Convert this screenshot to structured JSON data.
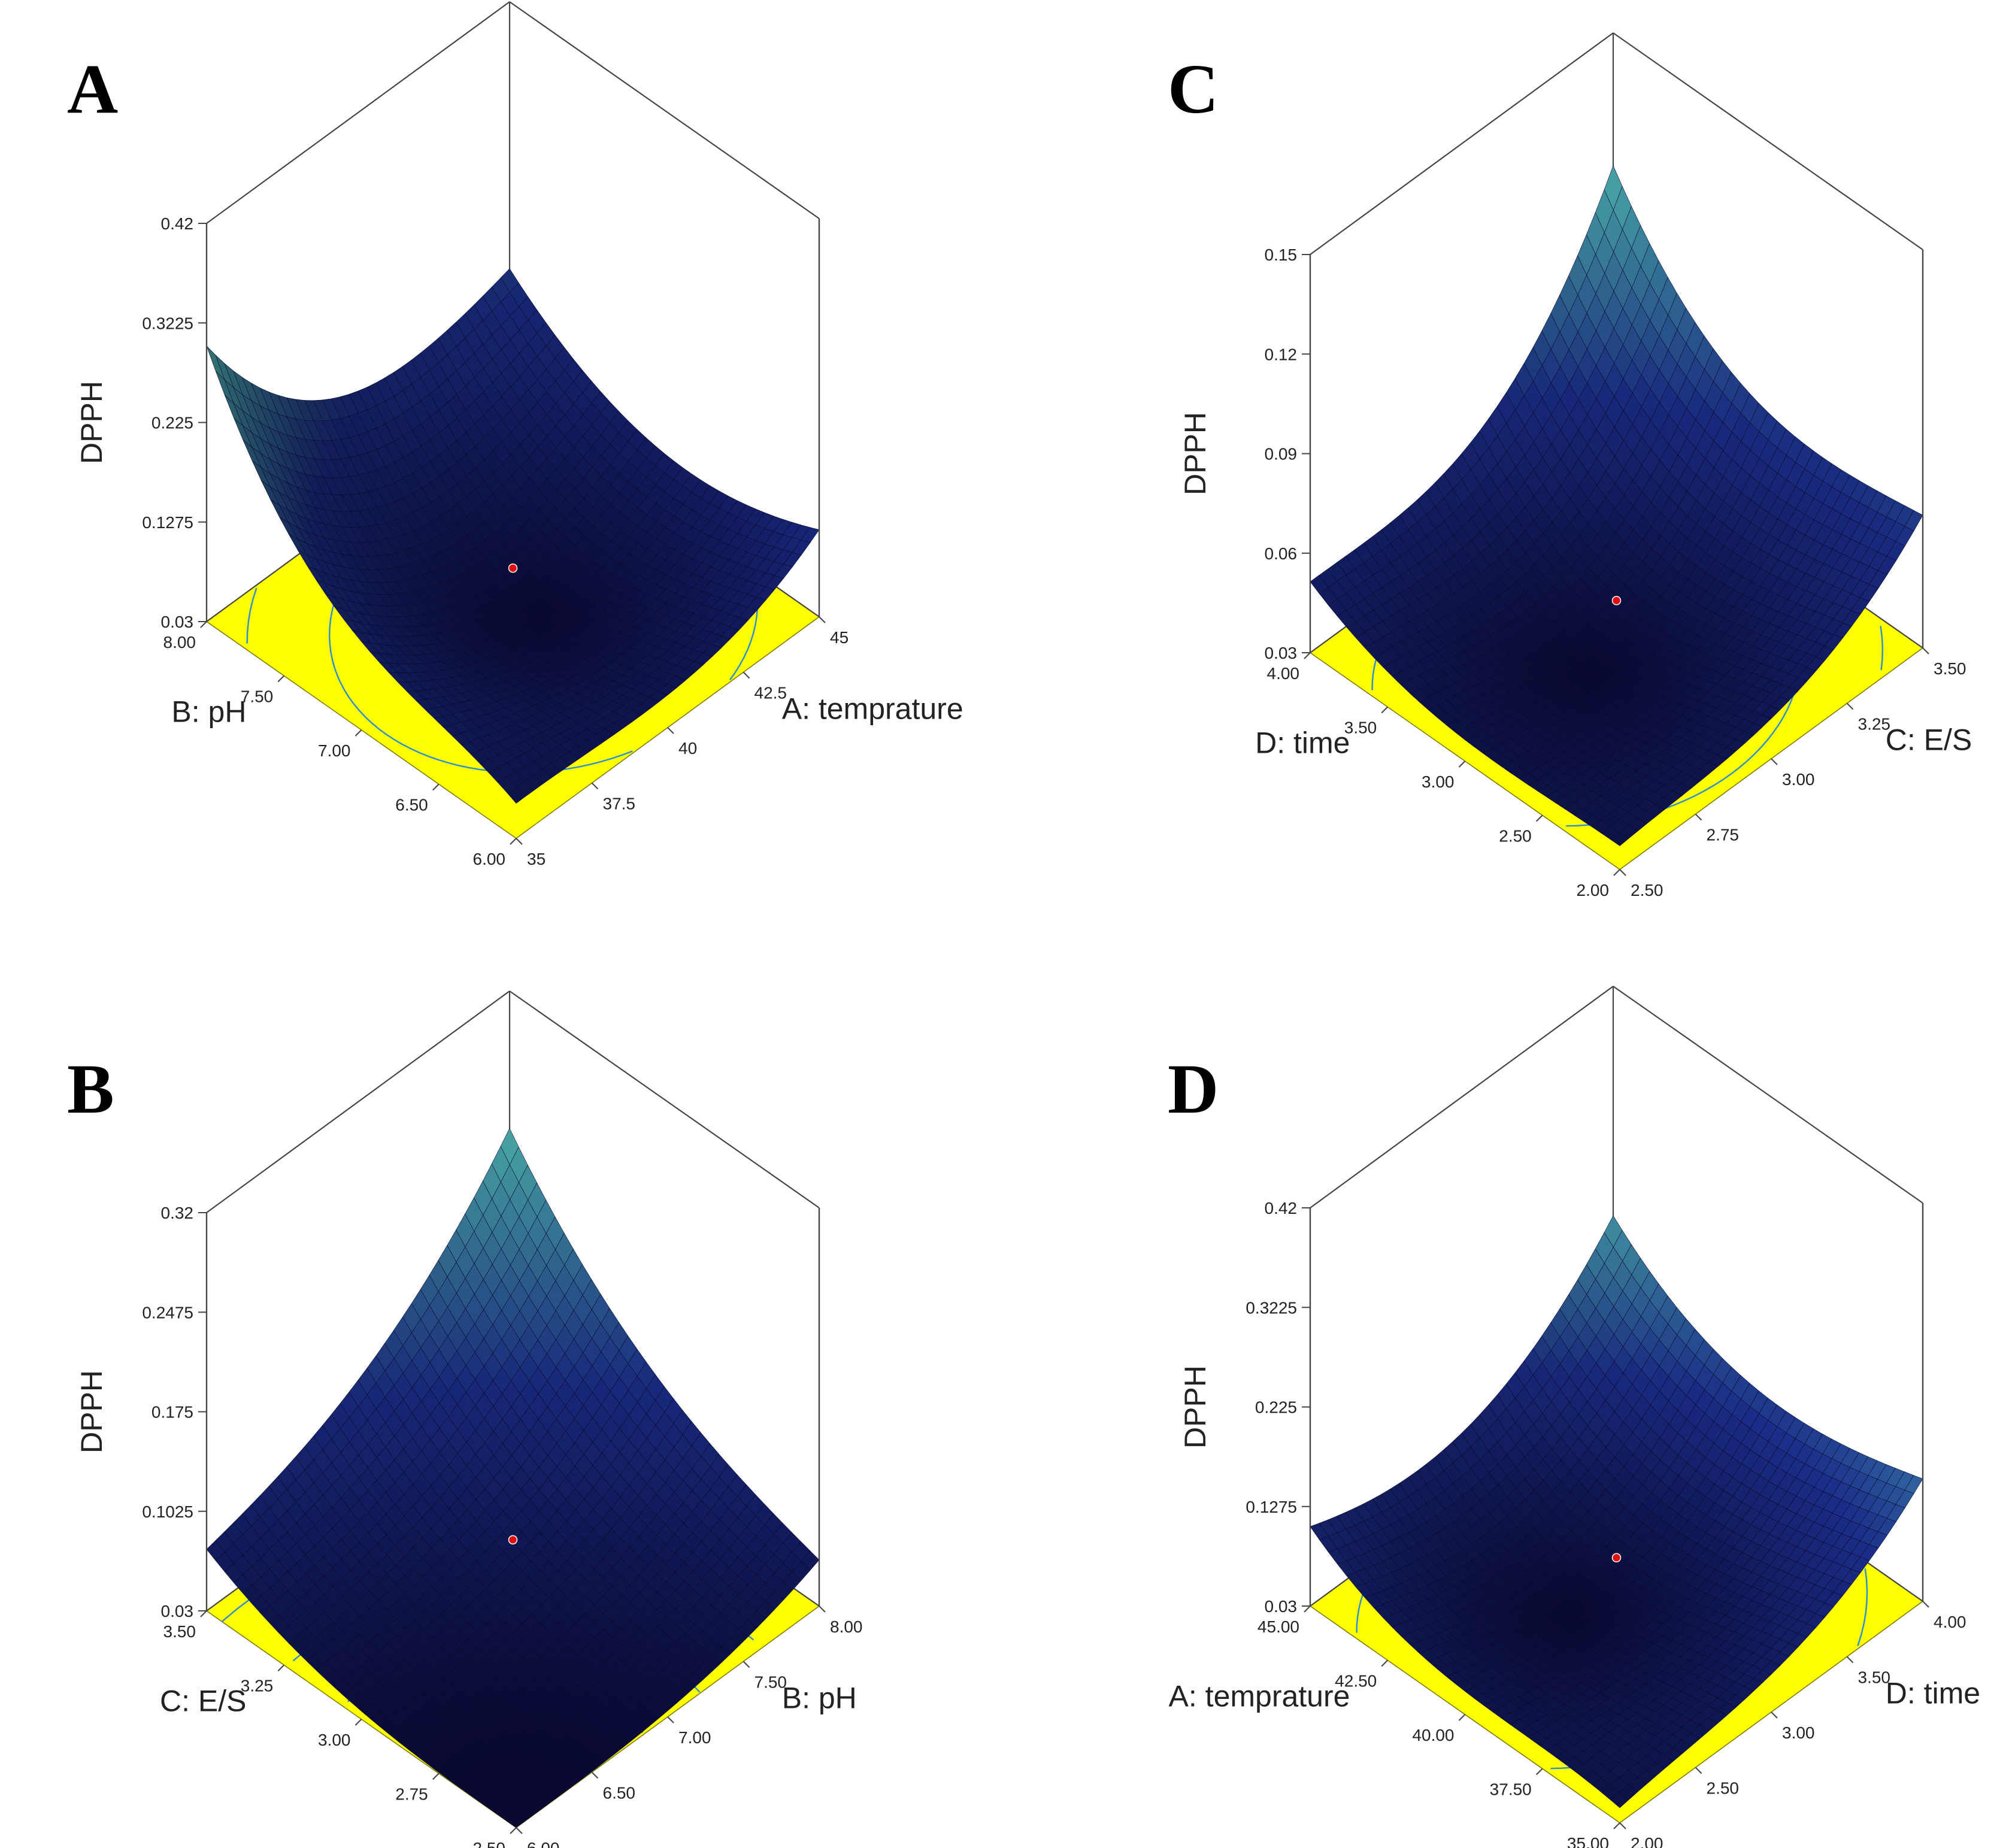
{
  "colors": {
    "floor": "#ffff00",
    "surface_low": "#0b0b3a",
    "surface_mid": "#1c2f8f",
    "surface_high": "#57c7c2",
    "contour": "#2a8fd0",
    "design_point": "#e01010"
  },
  "chart_data": [
    {
      "panel": "A",
      "type": "surface",
      "xlabel": "A: temprature",
      "ylabel": "B: pH",
      "zlabel": "DPPH",
      "x_ticks": [
        "35",
        "37.5",
        "40",
        "42.5",
        "45"
      ],
      "y_ticks": [
        "6.00",
        "6.50",
        "7.00",
        "7.50",
        "8.00"
      ],
      "z_ticks": [
        "0.03",
        "0.1275",
        "0.225",
        "0.3225",
        "0.42"
      ],
      "xlim": [
        35,
        45
      ],
      "ylim": [
        6,
        8
      ],
      "zlim": [
        0.03,
        0.42
      ],
      "corner_values": {
        "x_min_y_min": 0.07,
        "x_max_y_min": 0.15,
        "x_min_y_max": 0.3,
        "x_max_y_max": 0.18
      },
      "minimum": {
        "x": 40.5,
        "y": 6.9,
        "z": 0.03
      },
      "design_point": {
        "x": 40,
        "y": 7,
        "z": 0.08
      }
    },
    {
      "panel": "B",
      "type": "surface",
      "xlabel": "B: pH",
      "ylabel": "C: E/S",
      "zlabel": "DPPH",
      "x_ticks": [
        "6.00",
        "6.50",
        "7.00",
        "7.50",
        "8.00"
      ],
      "y_ticks": [
        "2.50",
        "2.75",
        "3.00",
        "3.25",
        "3.50"
      ],
      "z_ticks": [
        "0.03",
        "0.1025",
        "0.175",
        "0.2475",
        "0.32"
      ],
      "xlim": [
        6,
        8
      ],
      "ylim": [
        2.5,
        3.5
      ],
      "zlim": [
        0.03,
        0.32
      ],
      "corner_values": {
        "x_min_y_min": 0.03,
        "x_max_y_min": 0.09,
        "x_max_y_max": 0.22,
        "x_min_y_max": 0.11
      },
      "minimum": {
        "x": 6.2,
        "y": 2.6,
        "z": 0.03
      },
      "design_point": {
        "x": 7,
        "y": 3,
        "z": 0.08
      }
    },
    {
      "panel": "C",
      "type": "surface",
      "xlabel": "C: E/S",
      "ylabel": "D: time",
      "zlabel": "DPPH",
      "x_ticks": [
        "2.50",
        "2.75",
        "3.00",
        "3.25",
        "3.50"
      ],
      "y_ticks": [
        "2.00",
        "2.50",
        "3.00",
        "3.50",
        "4.00"
      ],
      "z_ticks": [
        "0.03",
        "0.06",
        "0.09",
        "0.12",
        "0.15"
      ],
      "xlim": [
        2.5,
        3.5
      ],
      "ylim": [
        2,
        4
      ],
      "zlim": [
        0.03,
        0.15
      ],
      "corner_values": {
        "x_min_y_min": 0.04,
        "x_max_y_min": 0.07,
        "x_min_y_max": 0.06,
        "x_max_y_max": 0.11
      },
      "minimum": {
        "x": 2.9,
        "y": 3.0,
        "z": 0.03
      },
      "design_point": {
        "x": 3,
        "y": 3,
        "z": 0.045
      }
    },
    {
      "panel": "D",
      "type": "surface",
      "xlabel": "D: time",
      "ylabel": "A: temprature",
      "zlabel": "DPPH",
      "x_ticks": [
        "2.00",
        "2.50",
        "3.00",
        "3.50",
        "4.00"
      ],
      "y_ticks": [
        "35.00",
        "37.50",
        "40.00",
        "42.50",
        "45.00"
      ],
      "z_ticks": [
        "0.03",
        "0.1275",
        "0.225",
        "0.3225",
        "0.42"
      ],
      "xlim": [
        2,
        4
      ],
      "ylim": [
        35,
        45
      ],
      "zlim": [
        0.03,
        0.42
      ],
      "corner_values": {
        "x_min_y_min": 0.05,
        "x_max_y_min": 0.15,
        "x_min_y_max": 0.16,
        "x_max_y_max": 0.22
      },
      "minimum": {
        "x": 2.8,
        "y": 40.5,
        "z": 0.03
      },
      "design_point": {
        "x": 3,
        "y": 40,
        "z": 0.075
      }
    }
  ]
}
